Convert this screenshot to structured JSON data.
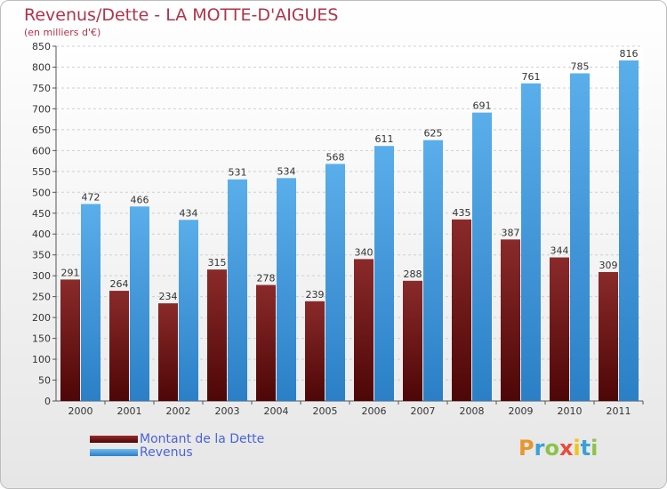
{
  "chart_data": {
    "type": "bar",
    "title": "Revenus/Dette - LA MOTTE-D'AIGUES",
    "subtitle": "(en milliers d'€)",
    "categories": [
      "2000",
      "2001",
      "2002",
      "2003",
      "2004",
      "2005",
      "2006",
      "2007",
      "2008",
      "2009",
      "2010",
      "2011"
    ],
    "series": [
      {
        "name": "Montant de la Dette",
        "color": "#6e1616",
        "values": [
          291,
          264,
          234,
          315,
          278,
          239,
          340,
          288,
          435,
          387,
          344,
          309
        ]
      },
      {
        "name": "Revenus",
        "color": "#4a9fe0",
        "values": [
          472,
          466,
          434,
          531,
          534,
          568,
          611,
          625,
          691,
          761,
          785,
          816
        ]
      }
    ],
    "ylim": [
      0,
      850
    ],
    "ytick_step": 50,
    "grid": true,
    "legend": "bottom-left"
  },
  "logo": {
    "letters": [
      "P",
      "r",
      "o",
      "x",
      "i",
      "t",
      "i"
    ],
    "colors": [
      "#e8962c",
      "#3aa0d8",
      "#8bc34a",
      "#e84c3d",
      "#f0c419",
      "#3aa0d8",
      "#8bc34a"
    ]
  }
}
